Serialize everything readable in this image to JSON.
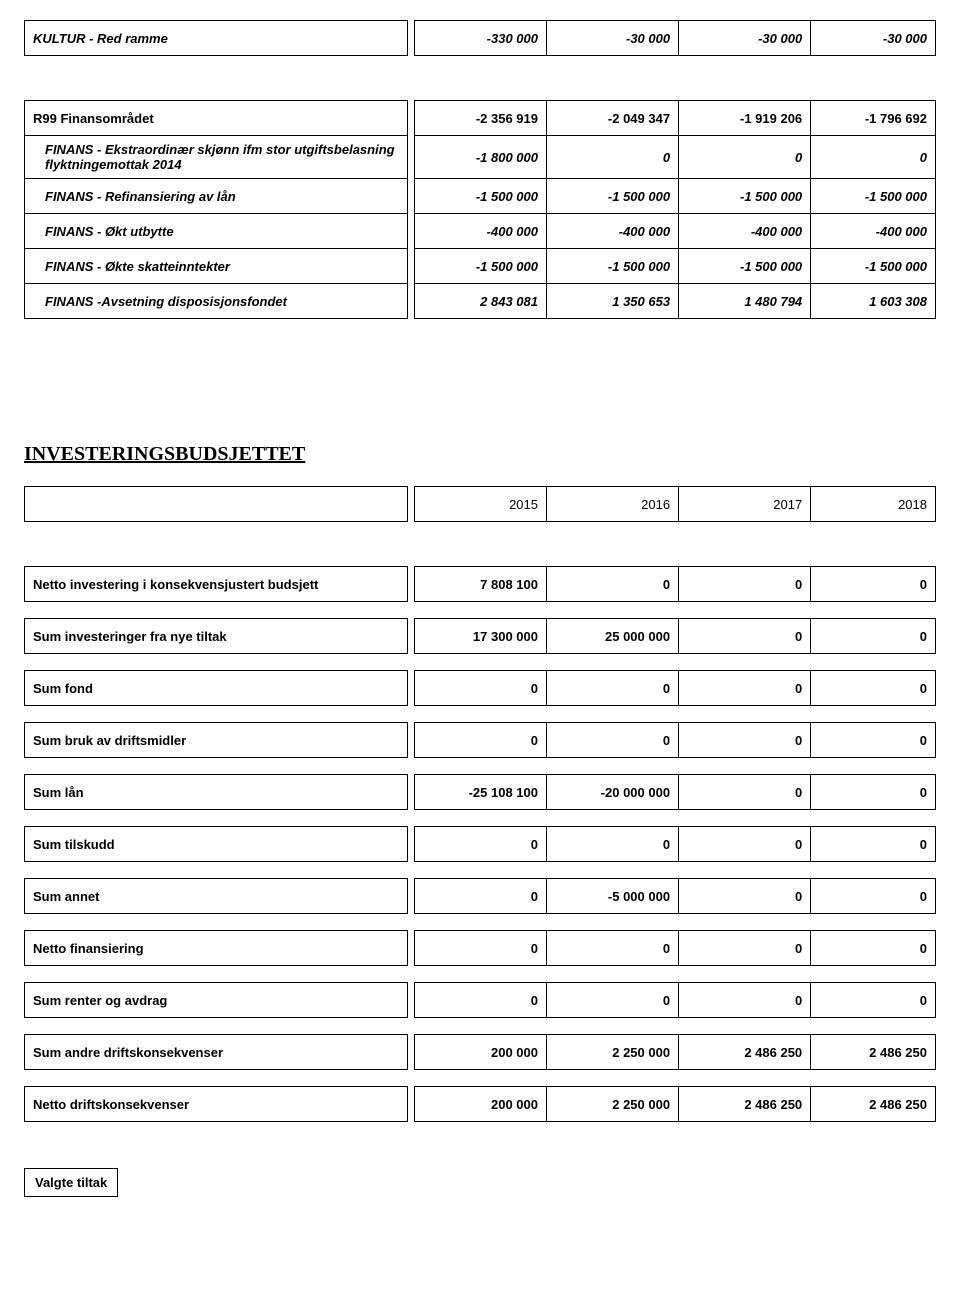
{
  "table1": {
    "rows": [
      {
        "label": "KULTUR - Red ramme",
        "c1": "-330 000",
        "c2": "-30 000",
        "c3": "-30 000",
        "c4": "-30 000"
      }
    ]
  },
  "table2": {
    "rows": [
      {
        "label": "R99 Finansområdet",
        "c1": "-2 356 919",
        "c2": "-2 049 347",
        "c3": "-1 919 206",
        "c4": "-1 796 692",
        "style": "plain"
      },
      {
        "label": "FINANS - Ekstraordinær skjønn ifm stor utgiftsbelasning flyktningemottak 2014",
        "c1": "-1 800 000",
        "c2": "0",
        "c3": "0",
        "c4": "0",
        "indent": true
      },
      {
        "label": "FINANS - Refinansiering av lån",
        "c1": "-1 500 000",
        "c2": "-1 500 000",
        "c3": "-1 500 000",
        "c4": "-1 500 000",
        "indent": true
      },
      {
        "label": "FINANS - Økt utbytte",
        "c1": "-400 000",
        "c2": "-400 000",
        "c3": "-400 000",
        "c4": "-400 000",
        "indent": true
      },
      {
        "label": "FINANS - Økte skatteinntekter",
        "c1": "-1 500 000",
        "c2": "-1 500 000",
        "c3": "-1 500 000",
        "c4": "-1 500 000",
        "indent": true
      },
      {
        "label": "FINANS -Avsetning disposisjonsfondet",
        "c1": "2 843 081",
        "c2": "1 350 653",
        "c3": "1 480 794",
        "c4": "1 603 308",
        "indent": true
      }
    ]
  },
  "sectionTitle": "INVESTERINGSBUDSJETTET",
  "yearsRow": {
    "c1": "2015",
    "c2": "2016",
    "c3": "2017",
    "c4": "2018"
  },
  "table3": {
    "rows": [
      {
        "label": "Netto investering i konsekvensjustert budsjett",
        "c1": "7 808 100",
        "c2": "0",
        "c3": "0",
        "c4": "0"
      },
      {
        "label": "Sum investeringer fra nye tiltak",
        "c1": "17 300 000",
        "c2": "25 000 000",
        "c3": "0",
        "c4": "0"
      },
      {
        "label": "Sum fond",
        "c1": "0",
        "c2": "0",
        "c3": "0",
        "c4": "0"
      },
      {
        "label": "Sum bruk av driftsmidler",
        "c1": "0",
        "c2": "0",
        "c3": "0",
        "c4": "0"
      },
      {
        "label": "Sum lån",
        "c1": "-25 108 100",
        "c2": "-20 000 000",
        "c3": "0",
        "c4": "0"
      },
      {
        "label": "Sum tilskudd",
        "c1": "0",
        "c2": "0",
        "c3": "0",
        "c4": "0"
      },
      {
        "label": "Sum annet",
        "c1": "0",
        "c2": "-5 000 000",
        "c3": "0",
        "c4": "0"
      },
      {
        "label": "Netto finansiering",
        "c1": "0",
        "c2": "0",
        "c3": "0",
        "c4": "0"
      },
      {
        "label": "Sum renter og avdrag",
        "c1": "0",
        "c2": "0",
        "c3": "0",
        "c4": "0"
      },
      {
        "label": "Sum andre driftskonsekvenser",
        "c1": "200 000",
        "c2": "2 250 000",
        "c3": "2 486 250",
        "c4": "2 486 250"
      },
      {
        "label": "Netto driftskonsekvenser",
        "c1": "200 000",
        "c2": "2 250 000",
        "c3": "2 486 250",
        "c4": "2 486 250"
      }
    ]
  },
  "footerLabel": "Valgte tiltak"
}
